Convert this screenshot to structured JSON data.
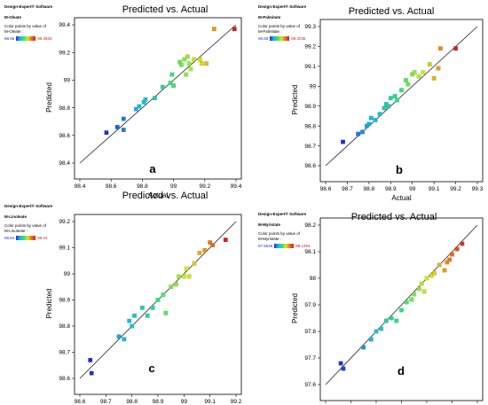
{
  "chart_data": [
    {
      "type": "scatter",
      "title": "Predicted vs. Actual",
      "xlabel": "Actual",
      "ylabel": "Predicted",
      "panel_label": "a",
      "software": "Design-Expert® Software",
      "response": "M-Oleate",
      "color_label": [
        "Color points by value of",
        "M-Oleate :"
      ],
      "color_min": "98.56",
      "color_max": "99.3928",
      "xlim": [
        98.4,
        99.4
      ],
      "ylim": [
        98.4,
        99.4
      ],
      "xticks": [
        "98.4",
        "98.6",
        "98.8",
        "99",
        "99.2",
        "99.4"
      ],
      "yticks": [
        "98.4",
        "98.6",
        "98.8",
        "99",
        "99.2",
        "99.4"
      ],
      "x": [
        98.57,
        98.64,
        98.68,
        98.68,
        98.76,
        98.78,
        98.81,
        98.82,
        98.88,
        98.93,
        98.98,
        98.99,
        99.0,
        99.04,
        99.05,
        99.07,
        99.08,
        99.09,
        99.1,
        99.11,
        99.13,
        99.17,
        99.18,
        99.21,
        99.26,
        99.39
      ],
      "y": [
        98.62,
        98.66,
        98.64,
        98.72,
        98.79,
        98.81,
        98.84,
        98.86,
        98.87,
        98.95,
        98.98,
        99.04,
        98.96,
        99.13,
        99.11,
        99.15,
        99.04,
        99.17,
        99.12,
        99.08,
        99.15,
        99.15,
        99.12,
        99.12,
        99.37,
        99.37
      ]
    },
    {
      "type": "scatter",
      "title": "Predicted vs. Actual",
      "xlabel": "Actual",
      "ylabel": "Predicted",
      "panel_label": "b",
      "software": "Design-Expert® Software",
      "response": "M-Palmitate",
      "color_label": [
        "Color points by value of",
        "M-Palmitate :"
      ],
      "color_min": "98.68",
      "color_max": "99.2038",
      "xlim": [
        98.6,
        99.3
      ],
      "ylim": [
        98.6,
        99.3
      ],
      "xticks": [
        "98.6",
        "98.7",
        "98.8",
        "98.9",
        "99",
        "99.1",
        "99.2",
        "99.3"
      ],
      "yticks": [
        "98.6",
        "98.7",
        "98.8",
        "98.9",
        "99",
        "99.1",
        "99.2",
        "99.3"
      ],
      "x": [
        98.68,
        98.75,
        98.77,
        98.79,
        98.8,
        98.81,
        98.83,
        98.85,
        98.87,
        98.88,
        98.89,
        98.9,
        98.92,
        98.93,
        98.95,
        98.97,
        98.98,
        99.0,
        99.01,
        99.03,
        99.05,
        99.08,
        99.1,
        99.12,
        99.13,
        99.2
      ],
      "y": [
        98.72,
        98.76,
        98.77,
        98.8,
        98.81,
        98.84,
        98.83,
        98.86,
        98.89,
        98.91,
        98.9,
        98.94,
        98.95,
        98.93,
        98.98,
        99.03,
        99.01,
        99.06,
        99.07,
        99.05,
        99.07,
        99.11,
        99.04,
        99.09,
        99.19,
        99.19
      ]
    },
    {
      "type": "scatter",
      "title": "Predicted vs. Actual",
      "xlabel": "Actual",
      "ylabel": "Predicted",
      "panel_label": "c",
      "software": "Design-Expert® Software",
      "response": "M-Linoleate",
      "color_label": [
        "Color points by value of",
        "M-Linoleate :"
      ],
      "color_min": "98.64",
      "color_max": "99.16",
      "xlim": [
        98.6,
        99.2
      ],
      "ylim": [
        98.6,
        99.2
      ],
      "xticks": [
        "98.6",
        "98.7",
        "98.8",
        "98.9",
        "99",
        "99.1",
        "99.2"
      ],
      "yticks": [
        "98.6",
        "98.7",
        "98.8",
        "98.9",
        "99",
        "99.1",
        "99.2"
      ],
      "x": [
        98.64,
        98.645,
        98.75,
        98.77,
        98.79,
        98.8,
        98.81,
        98.84,
        98.86,
        98.88,
        98.9,
        98.92,
        98.93,
        98.95,
        98.97,
        98.98,
        99.0,
        99.01,
        99.02,
        99.04,
        99.06,
        99.08,
        99.1,
        99.11,
        99.16
      ],
      "y": [
        98.67,
        98.62,
        98.76,
        98.75,
        98.82,
        98.8,
        98.84,
        98.87,
        98.84,
        98.87,
        98.9,
        98.92,
        98.85,
        98.95,
        98.96,
        98.99,
        98.99,
        99.02,
        98.99,
        99.04,
        99.08,
        99.09,
        99.12,
        99.11,
        99.13
      ]
    },
    {
      "type": "scatter",
      "title": "Predicted vs. Actual",
      "xlabel": "Actual",
      "ylabel": "Predicted",
      "panel_label": "d",
      "software": "Design-Expert® Software",
      "response": "M-Myristate",
      "color_label": [
        "Color points by value of",
        "M-Myristate :"
      ],
      "color_min": "97.6546",
      "color_max": "98.1494",
      "xlim": [
        97.6,
        98.2
      ],
      "ylim": [
        97.6,
        98.2
      ],
      "xticks": [
        "97.6",
        "97.7",
        "97.8",
        "97.9",
        "98",
        "98.1",
        "98.2"
      ],
      "yticks": [
        "97.6",
        "97.7",
        "97.8",
        "97.9",
        "98",
        "98.1",
        "98.2"
      ],
      "x": [
        97.66,
        97.67,
        97.75,
        97.78,
        97.8,
        97.82,
        97.84,
        97.86,
        97.88,
        97.9,
        97.92,
        97.94,
        97.95,
        97.97,
        97.98,
        97.99,
        98.0,
        98.02,
        98.03,
        98.05,
        98.07,
        98.08,
        98.09,
        98.1,
        98.12,
        98.14
      ],
      "y": [
        97.68,
        97.66,
        97.74,
        97.77,
        97.8,
        97.81,
        97.84,
        97.85,
        97.84,
        97.88,
        97.91,
        97.92,
        97.94,
        97.96,
        97.98,
        97.95,
        98.0,
        98.01,
        98.02,
        98.05,
        98.03,
        98.06,
        98.07,
        98.09,
        98.11,
        98.13
      ]
    }
  ]
}
